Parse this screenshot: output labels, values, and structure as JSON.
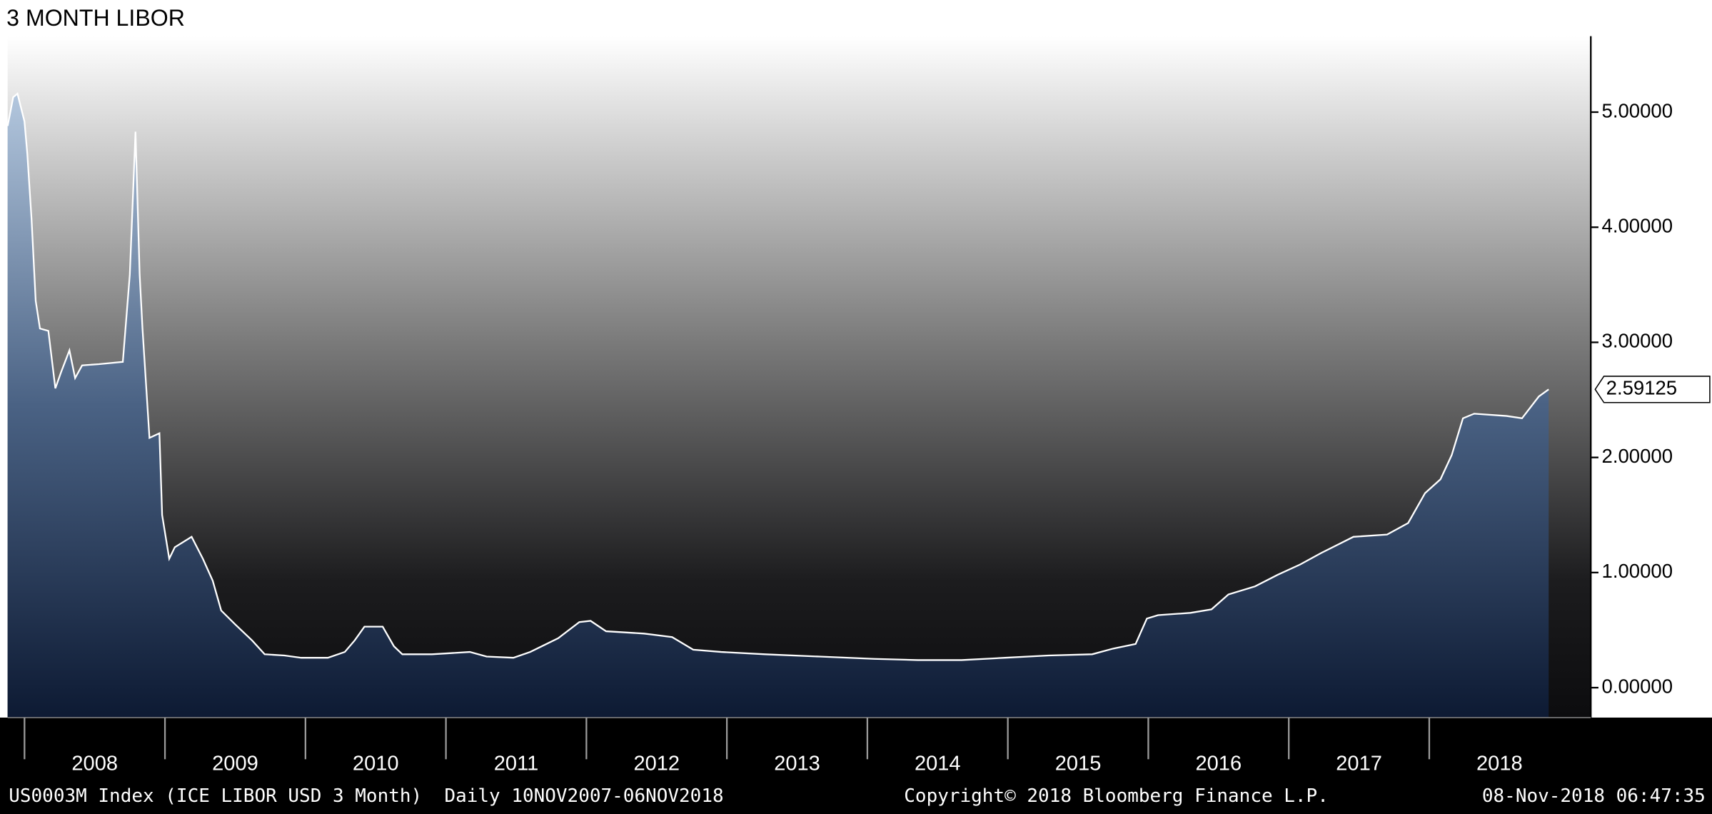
{
  "chart_data": {
    "type": "line",
    "title": "3 MONTH LIBOR",
    "color": "#ffffff",
    "x": [
      2007.88,
      2007.92,
      2007.95,
      2008.0,
      2008.02,
      2008.05,
      2008.08,
      2008.11,
      2008.17,
      2008.22,
      2008.26,
      2008.32,
      2008.36,
      2008.41,
      2008.53,
      2008.7,
      2008.75,
      2008.79,
      2008.82,
      2008.84,
      2008.89,
      2008.96,
      2008.98,
      2009.03,
      2009.07,
      2009.19,
      2009.27,
      2009.34,
      2009.4,
      2009.5,
      2009.62,
      2009.71,
      2009.85,
      2009.97,
      2010.16,
      2010.28,
      2010.35,
      2010.42,
      2010.55,
      2010.63,
      2010.69,
      2010.9,
      2011.17,
      2011.29,
      2011.48,
      2011.6,
      2011.8,
      2011.95,
      2012.03,
      2012.14,
      2012.41,
      2012.61,
      2012.76,
      2012.96,
      2013.27,
      2013.66,
      2014.05,
      2014.36,
      2014.67,
      2014.98,
      2015.29,
      2015.6,
      2015.75,
      2015.91,
      2015.99,
      2016.07,
      2016.3,
      2016.45,
      2016.57,
      2016.76,
      2016.92,
      2017.08,
      2017.23,
      2017.46,
      2017.7,
      2017.85,
      2017.97,
      2018.08,
      2018.16,
      2018.24,
      2018.32,
      2018.55,
      2018.66,
      2018.78,
      2018.85
    ],
    "values": [
      4.88,
      5.13,
      5.16,
      4.92,
      4.64,
      4.07,
      3.36,
      3.12,
      3.1,
      2.6,
      2.74,
      2.93,
      2.69,
      2.8,
      2.81,
      2.83,
      3.59,
      4.83,
      3.59,
      3.12,
      2.17,
      2.21,
      1.5,
      1.12,
      1.22,
      1.31,
      1.12,
      0.93,
      0.67,
      0.55,
      0.41,
      0.29,
      0.28,
      0.26,
      0.26,
      0.31,
      0.41,
      0.53,
      0.53,
      0.36,
      0.29,
      0.29,
      0.31,
      0.27,
      0.26,
      0.31,
      0.43,
      0.57,
      0.58,
      0.49,
      0.47,
      0.44,
      0.33,
      0.31,
      0.29,
      0.27,
      0.25,
      0.24,
      0.24,
      0.26,
      0.28,
      0.29,
      0.34,
      0.38,
      0.6,
      0.63,
      0.65,
      0.68,
      0.81,
      0.88,
      0.98,
      1.07,
      1.17,
      1.31,
      1.33,
      1.43,
      1.69,
      1.81,
      2.02,
      2.34,
      2.38,
      2.36,
      2.34,
      2.53,
      2.59125
    ],
    "xlim": [
      2007.88,
      2019.15
    ],
    "xticks": [
      2008,
      2009,
      2010,
      2011,
      2012,
      2013,
      2014,
      2015,
      2016,
      2017,
      2018
    ],
    "ylim": [
      -0.26,
      5.66
    ],
    "yticks": [
      {
        "value": 0,
        "label": "0.00000"
      },
      {
        "value": 1,
        "label": "1.00000"
      },
      {
        "value": 2,
        "label": "2.00000"
      },
      {
        "value": 3,
        "label": "3.00000"
      },
      {
        "value": 4,
        "label": "4.00000"
      },
      {
        "value": 5,
        "label": "5.00000"
      }
    ],
    "footer": {
      "source": "US0003M Index (ICE LIBOR USD 3 Month)  Daily 10NOV2007-06NOV2018",
      "copyright": "Copyright© 2018 Bloomberg Finance L.P.",
      "timestamp": "08-Nov-2018 06:47:35"
    }
  }
}
